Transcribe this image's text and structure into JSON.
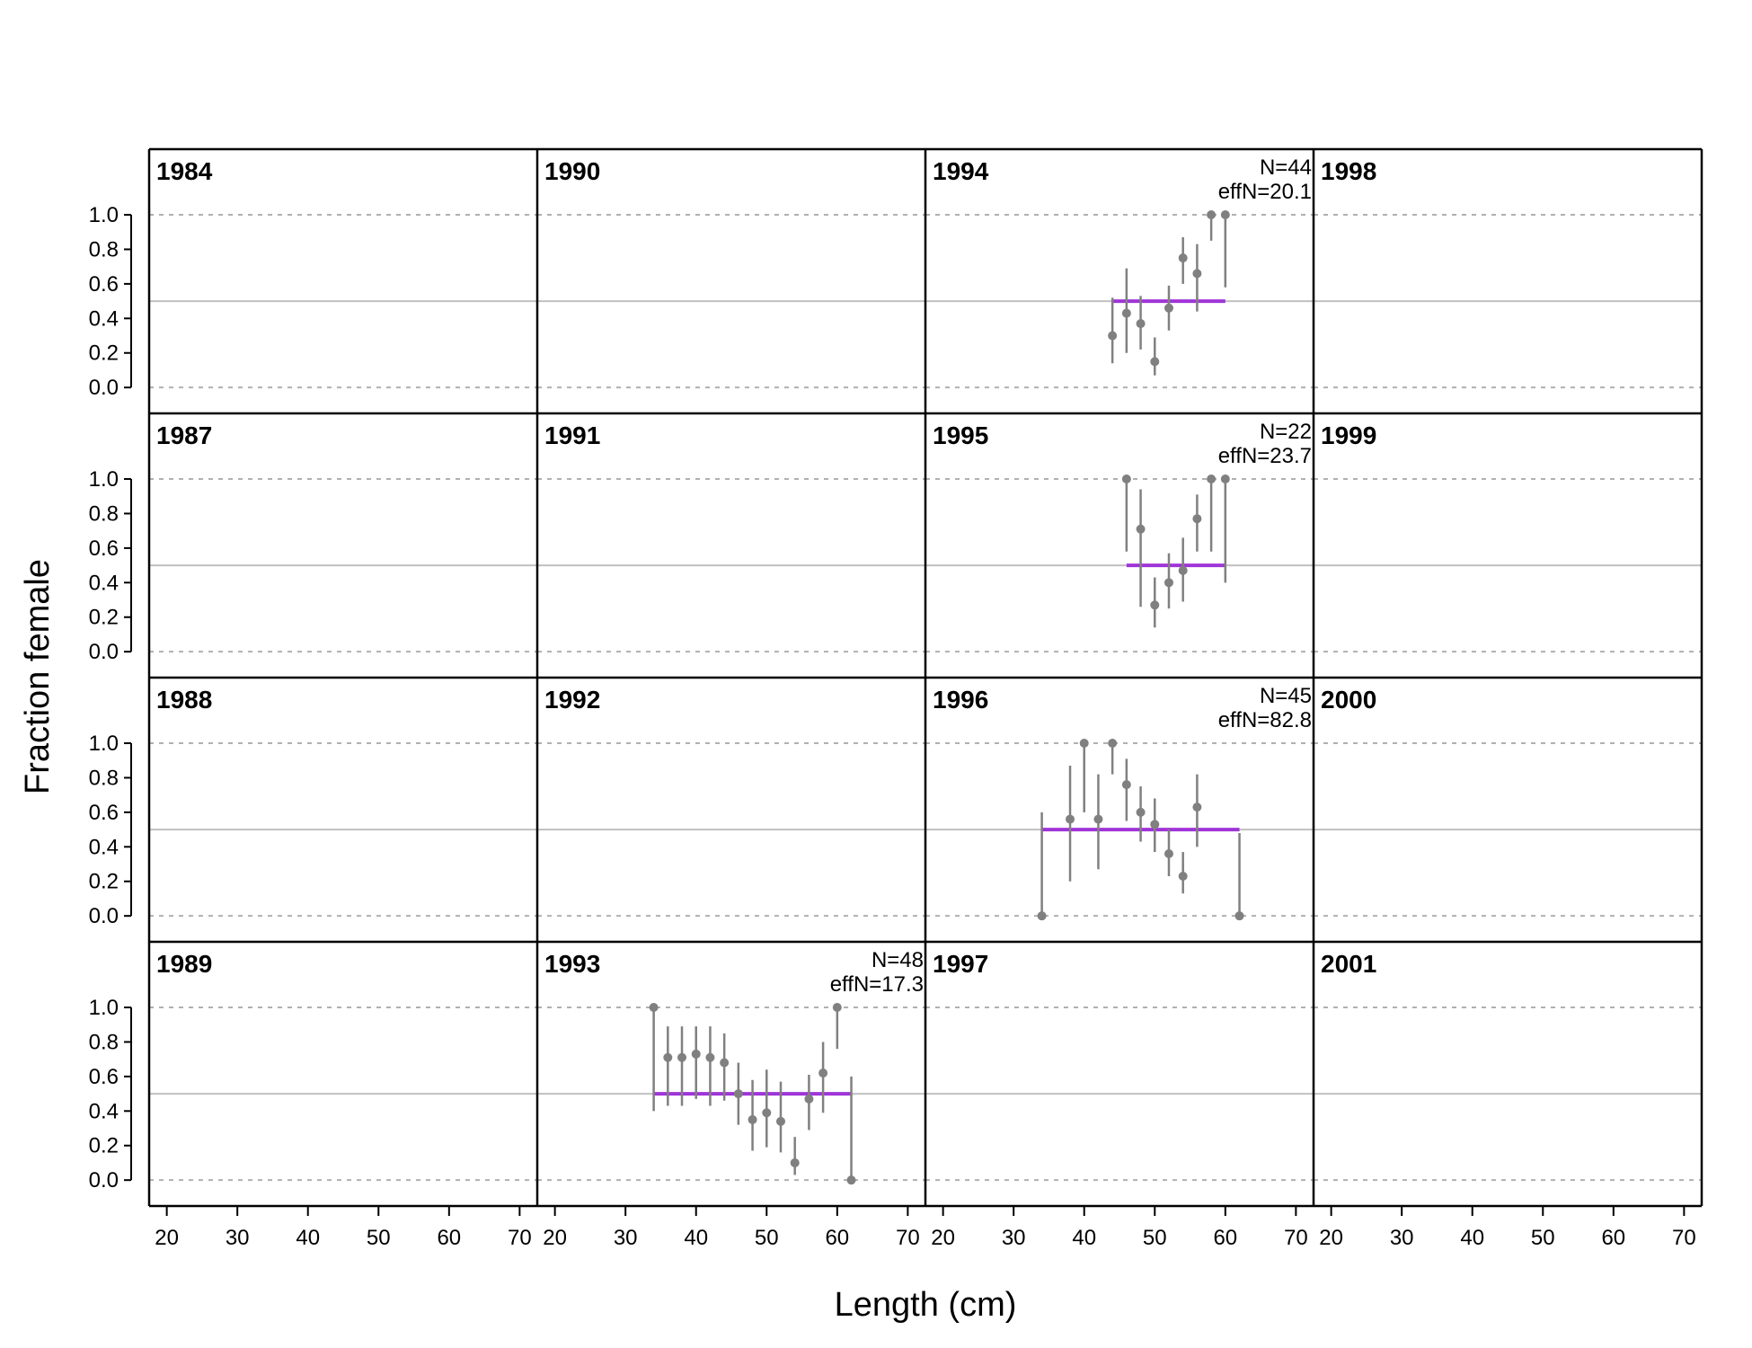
{
  "chart_data": {
    "type": "scatter",
    "xlabel": "Length (cm)",
    "ylabel": "Fraction female",
    "xlim": [
      17.5,
      72.5
    ],
    "ylim": [
      -0.15,
      1.38
    ],
    "x_ticks": [
      20,
      30,
      40,
      50,
      60,
      70
    ],
    "x_tick_labels": [
      "20",
      "30",
      "40",
      "50",
      "60",
      "70"
    ],
    "y_ticks": [
      0,
      0.2,
      0.4,
      0.6,
      0.8,
      1.0
    ],
    "y_tick_labels": [
      "0.0",
      "0.2",
      "0.4",
      "0.6",
      "0.8",
      "1.0"
    ],
    "reference_line": 0.5,
    "grid": "dashed lines at 0.0 and 1.0, solid line at 0.5",
    "colors": {
      "points": "#808080",
      "error_bars": "#808080",
      "expected_line": "#a035d8",
      "reference_line": "#c0c0c0",
      "dashed_lines": "#b0b0b0",
      "frame": "#000000"
    },
    "panels": [
      {
        "year": "1984"
      },
      {
        "year": "1990"
      },
      {
        "year": "1994",
        "n_label": "N=44",
        "effn_label": "effN=20.1",
        "expected": {
          "x_start": 44,
          "x_end": 60,
          "value": 0.5
        },
        "points": [
          {
            "x": 44,
            "y": 0.3,
            "lo": 0.14,
            "hi": 0.52
          },
          {
            "x": 46,
            "y": 0.43,
            "lo": 0.2,
            "hi": 0.69
          },
          {
            "x": 48,
            "y": 0.37,
            "lo": 0.22,
            "hi": 0.53
          },
          {
            "x": 50,
            "y": 0.15,
            "lo": 0.07,
            "hi": 0.29
          },
          {
            "x": 52,
            "y": 0.46,
            "lo": 0.33,
            "hi": 0.59
          },
          {
            "x": 54,
            "y": 0.75,
            "lo": 0.6,
            "hi": 0.87
          },
          {
            "x": 56,
            "y": 0.66,
            "lo": 0.44,
            "hi": 0.83
          },
          {
            "x": 58,
            "y": 1.0,
            "lo": 0.85,
            "hi": 1.0
          },
          {
            "x": 60,
            "y": 1.0,
            "lo": 0.58,
            "hi": 1.0
          }
        ]
      },
      {
        "year": "1998"
      },
      {
        "year": "1987"
      },
      {
        "year": "1991"
      },
      {
        "year": "1995",
        "n_label": "N=22",
        "effn_label": "effN=23.7",
        "expected": {
          "x_start": 46,
          "x_end": 60,
          "value": 0.5
        },
        "points": [
          {
            "x": 46,
            "y": 1.0,
            "lo": 0.58,
            "hi": 1.0
          },
          {
            "x": 48,
            "y": 0.71,
            "lo": 0.26,
            "hi": 0.94
          },
          {
            "x": 50,
            "y": 0.27,
            "lo": 0.14,
            "hi": 0.43
          },
          {
            "x": 52,
            "y": 0.4,
            "lo": 0.25,
            "hi": 0.57
          },
          {
            "x": 54,
            "y": 0.47,
            "lo": 0.29,
            "hi": 0.66
          },
          {
            "x": 56,
            "y": 0.77,
            "lo": 0.58,
            "hi": 0.91
          },
          {
            "x": 58,
            "y": 1.0,
            "lo": 0.58,
            "hi": 1.0
          },
          {
            "x": 60,
            "y": 1.0,
            "lo": 0.4,
            "hi": 1.0
          }
        ]
      },
      {
        "year": "1999"
      },
      {
        "year": "1988"
      },
      {
        "year": "1992"
      },
      {
        "year": "1996",
        "n_label": "N=45",
        "effn_label": "effN=82.8",
        "expected": {
          "x_start": 34,
          "x_end": 62,
          "value": 0.5
        },
        "points": [
          {
            "x": 34,
            "y": 0.0,
            "lo": 0.0,
            "hi": 0.6
          },
          {
            "x": 38,
            "y": 0.56,
            "lo": 0.2,
            "hi": 0.87
          },
          {
            "x": 40,
            "y": 1.0,
            "lo": 0.6,
            "hi": 1.0
          },
          {
            "x": 42,
            "y": 0.56,
            "lo": 0.27,
            "hi": 0.82
          },
          {
            "x": 44,
            "y": 1.0,
            "lo": 0.82,
            "hi": 1.0
          },
          {
            "x": 46,
            "y": 0.76,
            "lo": 0.55,
            "hi": 0.91
          },
          {
            "x": 48,
            "y": 0.6,
            "lo": 0.43,
            "hi": 0.75
          },
          {
            "x": 50,
            "y": 0.53,
            "lo": 0.37,
            "hi": 0.68
          },
          {
            "x": 52,
            "y": 0.36,
            "lo": 0.23,
            "hi": 0.5
          },
          {
            "x": 54,
            "y": 0.23,
            "lo": 0.13,
            "hi": 0.37
          },
          {
            "x": 56,
            "y": 0.63,
            "lo": 0.4,
            "hi": 0.82
          },
          {
            "x": 62,
            "y": 0.0,
            "lo": 0.0,
            "hi": 0.48
          }
        ]
      },
      {
        "year": "2000"
      },
      {
        "year": "1989"
      },
      {
        "year": "1993",
        "n_label": "N=48",
        "effn_label": "effN=17.3",
        "expected": {
          "x_start": 34,
          "x_end": 62,
          "value": 0.5
        },
        "points": [
          {
            "x": 34,
            "y": 1.0,
            "lo": 0.4,
            "hi": 1.0
          },
          {
            "x": 36,
            "y": 0.71,
            "lo": 0.43,
            "hi": 0.89
          },
          {
            "x": 38,
            "y": 0.71,
            "lo": 0.43,
            "hi": 0.89
          },
          {
            "x": 40,
            "y": 0.73,
            "lo": 0.47,
            "hi": 0.89
          },
          {
            "x": 42,
            "y": 0.71,
            "lo": 0.43,
            "hi": 0.89
          },
          {
            "x": 44,
            "y": 0.68,
            "lo": 0.46,
            "hi": 0.85
          },
          {
            "x": 46,
            "y": 0.5,
            "lo": 0.32,
            "hi": 0.68
          },
          {
            "x": 48,
            "y": 0.35,
            "lo": 0.17,
            "hi": 0.58
          },
          {
            "x": 50,
            "y": 0.39,
            "lo": 0.19,
            "hi": 0.64
          },
          {
            "x": 52,
            "y": 0.34,
            "lo": 0.16,
            "hi": 0.57
          },
          {
            "x": 54,
            "y": 0.1,
            "lo": 0.03,
            "hi": 0.25
          },
          {
            "x": 56,
            "y": 0.47,
            "lo": 0.29,
            "hi": 0.61
          },
          {
            "x": 58,
            "y": 0.62,
            "lo": 0.39,
            "hi": 0.8
          },
          {
            "x": 60,
            "y": 1.0,
            "lo": 0.76,
            "hi": 1.0
          },
          {
            "x": 62,
            "y": 0.0,
            "lo": 0.0,
            "hi": 0.6
          }
        ]
      },
      {
        "year": "1997"
      },
      {
        "year": "2001"
      }
    ]
  }
}
